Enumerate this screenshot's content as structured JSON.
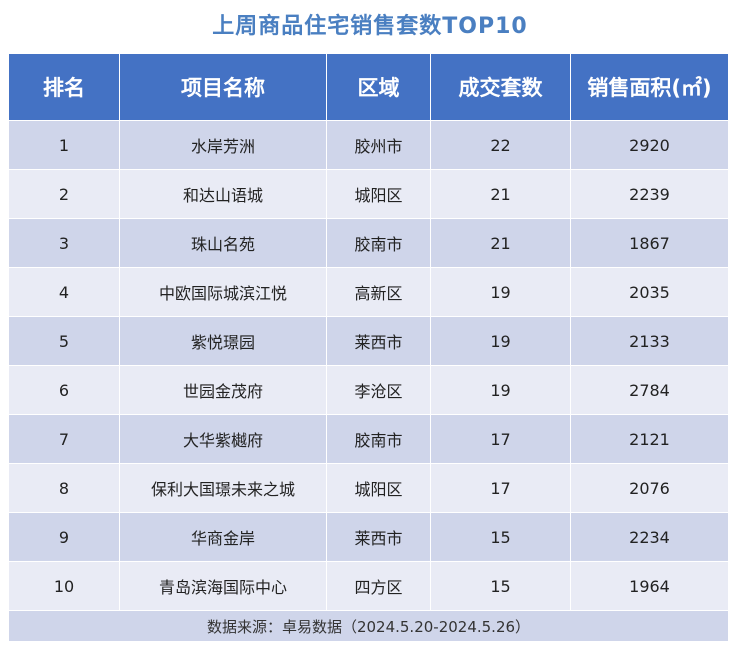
{
  "title": "上周商品住宅销售套数TOP10",
  "colors": {
    "title": "#4a7fc1",
    "header_bg": "#4472c4",
    "row_odd": "#cfd5ea",
    "row_even": "#e9ebf5"
  },
  "table": {
    "headers": [
      "排名",
      "项目名称",
      "区域",
      "成交套数",
      "销售面积(㎡)"
    ],
    "rows": [
      [
        "1",
        "水岸芳洲",
        "胶州市",
        "22",
        "2920"
      ],
      [
        "2",
        "和达山语城",
        "城阳区",
        "21",
        "2239"
      ],
      [
        "3",
        "珠山名苑",
        "胶南市",
        "21",
        "1867"
      ],
      [
        "4",
        "中欧国际城滨江悦",
        "高新区",
        "19",
        "2035"
      ],
      [
        "5",
        "紫悦璟园",
        "莱西市",
        "19",
        "2133"
      ],
      [
        "6",
        "世园金茂府",
        "李沧区",
        "19",
        "2784"
      ],
      [
        "7",
        "大华紫樾府",
        "胶南市",
        "17",
        "2121"
      ],
      [
        "8",
        "保利大国璟未来之城",
        "城阳区",
        "17",
        "2076"
      ],
      [
        "9",
        "华商金岸",
        "莱西市",
        "15",
        "2234"
      ],
      [
        "10",
        "青岛滨海国际中心",
        "四方区",
        "15",
        "1964"
      ]
    ],
    "source": "数据来源：卓易数据（2024.5.20-2024.5.26）"
  }
}
